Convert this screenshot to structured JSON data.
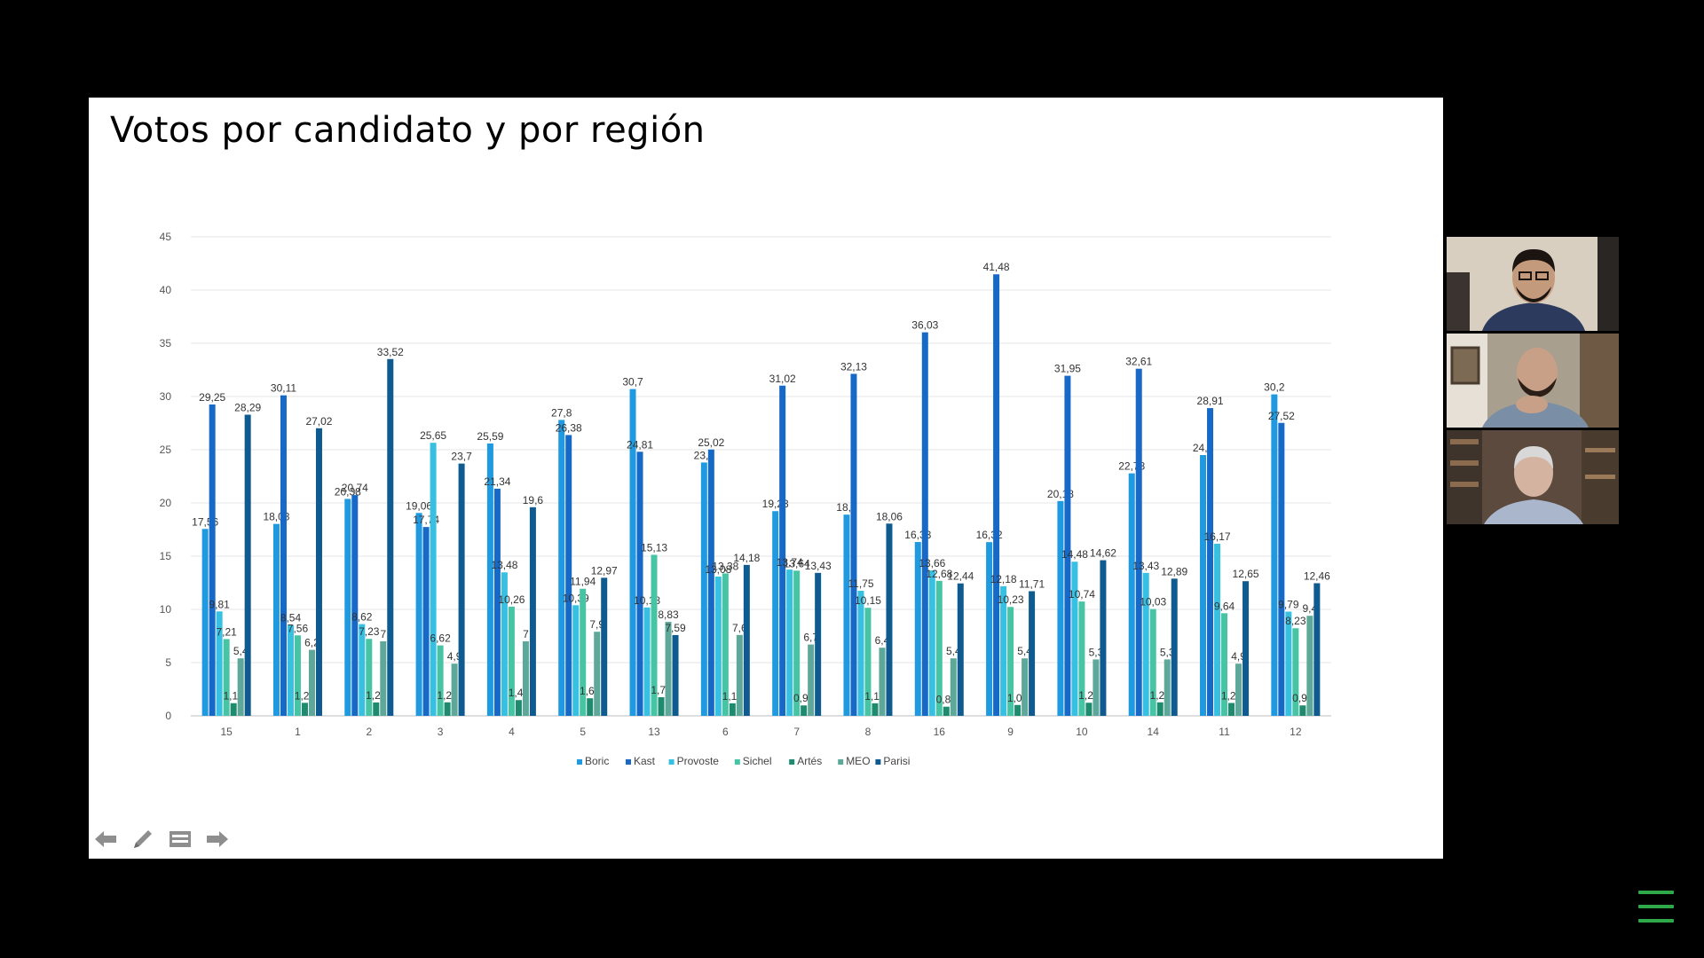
{
  "slide": {
    "title": "Votos por candidato y por región"
  },
  "colors": {
    "background": "#000000",
    "slide_background": "#ffffff",
    "menu_icon": "#2fa84a"
  },
  "chart_data": {
    "type": "bar",
    "categories": [
      "15",
      "1",
      "2",
      "3",
      "4",
      "5",
      "13",
      "6",
      "7",
      "8",
      "16",
      "9",
      "10",
      "14",
      "11",
      "12"
    ],
    "ylim": [
      0,
      45
    ],
    "yticks": [
      0,
      5,
      10,
      15,
      20,
      25,
      30,
      35,
      40,
      45
    ],
    "grid": true,
    "legend_position": "bottom",
    "series": [
      {
        "name": "Boric",
        "color": "#1f9ae0",
        "values": [
          17.56,
          18.03,
          20.38,
          19.06,
          25.59,
          27.8,
          30.7,
          23.8,
          19.23,
          18.9,
          16.33,
          16.32,
          20.18,
          22.78,
          24.5,
          30.2
        ]
      },
      {
        "name": "Kast",
        "color": "#1769c7",
        "values": [
          29.25,
          30.11,
          20.74,
          17.74,
          21.34,
          26.38,
          24.81,
          25.02,
          31.02,
          32.13,
          36.03,
          41.48,
          31.95,
          32.61,
          28.91,
          27.52
        ]
      },
      {
        "name": "Provoste",
        "color": "#38c0e3",
        "values": [
          9.81,
          8.54,
          8.62,
          25.65,
          13.48,
          10.39,
          10.18,
          13.08,
          13.74,
          11.75,
          13.66,
          12.18,
          14.48,
          13.43,
          16.17,
          9.79
        ]
      },
      {
        "name": "Sichel",
        "color": "#46c4a4",
        "values": [
          7.21,
          7.56,
          7.23,
          6.62,
          10.26,
          11.94,
          15.13,
          13.38,
          13.64,
          10.15,
          12.68,
          10.23,
          10.74,
          10.03,
          9.64,
          8.23
        ]
      },
      {
        "name": "Artés",
        "color": "#1e8a6e",
        "values": [
          1.19,
          1.22,
          1.26,
          1.27,
          1.48,
          1.65,
          1.75,
          1.18,
          0.98,
          1.18,
          0.86,
          1.02,
          1.23,
          1.27,
          1.21,
          0.98
        ]
      },
      {
        "name": "MEO",
        "color": "#5ea89a",
        "values": [
          5.4,
          6.2,
          7.0,
          4.9,
          7.0,
          7.9,
          8.83,
          7.6,
          6.7,
          6.4,
          5.4,
          5.4,
          5.3,
          5.3,
          4.9,
          9.4
        ]
      },
      {
        "name": "Parisi",
        "color": "#0f5a8e",
        "values": [
          28.29,
          27.02,
          33.52,
          23.7,
          19.6,
          12.97,
          7.59,
          14.18,
          13.43,
          18.06,
          12.44,
          11.71,
          14.62,
          12.89,
          12.65,
          12.46
        ]
      }
    ]
  },
  "controls": {
    "prev": "arrow-left-icon",
    "pen": "pen-icon",
    "slides": "slides-icon",
    "next": "arrow-right-icon"
  },
  "participants": [
    {
      "name": "",
      "bg": "#d9cfc0",
      "shirt": "#2c3a5e",
      "skin": "#c49a7c",
      "hair": "#1b1410"
    },
    {
      "name": "",
      "bg": "#a99f8e",
      "shirt": "#7a8fa6",
      "skin": "#c8a087",
      "hair": "#2b1e16"
    },
    {
      "name": "",
      "bg": "#5b4a3d",
      "shirt": "#a9b6cc",
      "skin": "#d4b3a0",
      "hair": "#d8d8d8"
    }
  ]
}
